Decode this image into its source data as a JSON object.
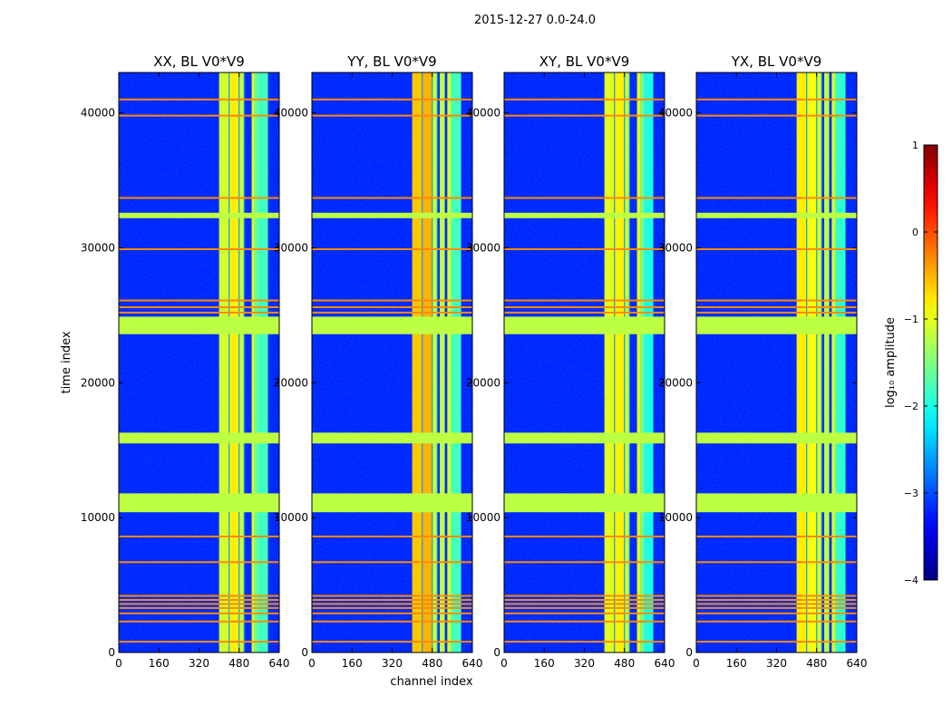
{
  "figure": {
    "suptitle": "2015-12-27 0.0-24.0",
    "xlabel": "channel index",
    "ylabel": "time index"
  },
  "colorbar": {
    "label": "log₁₀ amplitude",
    "ticks": [
      1,
      0,
      -1,
      -2,
      -3,
      -4
    ],
    "tick_labels": [
      "1",
      "0",
      "−1",
      "−2",
      "−3",
      "−4"
    ],
    "vmin": -4,
    "vmax": 1,
    "colormap": "jet"
  },
  "chart_data": [
    {
      "type": "heatmap",
      "title": "XX, BL V0*V9",
      "xlabel": "channel index",
      "ylabel": "time index",
      "xlim": [
        0,
        640
      ],
      "ylim": [
        0,
        43000
      ],
      "xticks": [
        0,
        160,
        320,
        480,
        640
      ],
      "yticks": [
        0,
        10000,
        20000,
        30000,
        40000
      ],
      "z_units": "log10 amplitude",
      "background_value": -3.2,
      "flagged_time_ranges": [
        [
          10400,
          11800
        ],
        [
          15500,
          16300
        ],
        [
          23600,
          24900
        ],
        [
          32200,
          32600
        ]
      ],
      "flagged_value": -1.2,
      "rfi_bands": [
        [
          400,
          440,
          -1.1
        ],
        [
          440,
          480,
          -0.8
        ],
        [
          480,
          500,
          -1.1
        ],
        [
          530,
          545,
          -1.0
        ],
        [
          540,
          555,
          -1.6
        ],
        [
          555,
          595,
          -1.8
        ]
      ],
      "rfi_time_lines": [
        800,
        2300,
        2900,
        3300,
        3600,
        3900,
        4200,
        6700,
        8600,
        25200,
        25600,
        26100,
        29900,
        33700,
        39800,
        41000
      ]
    },
    {
      "type": "heatmap",
      "title": "YY, BL V0*V9",
      "xlabel": "channel index",
      "ylabel": "time index",
      "xlim": [
        0,
        640
      ],
      "ylim": [
        0,
        43000
      ],
      "xticks": [
        0,
        160,
        320,
        480,
        640
      ],
      "yticks": [
        0,
        10000,
        20000,
        30000,
        40000
      ],
      "z_units": "log10 amplitude",
      "background_value": -3.2,
      "flagged_time_ranges": [
        [
          10400,
          11800
        ],
        [
          15500,
          16300
        ],
        [
          23600,
          24900
        ],
        [
          32200,
          32600
        ]
      ],
      "flagged_value": -1.2,
      "rfi_bands": [
        [
          400,
          440,
          -0.6
        ],
        [
          440,
          480,
          -0.5
        ],
        [
          480,
          500,
          -1.1
        ],
        [
          510,
          530,
          -1.2
        ],
        [
          540,
          555,
          -1.1
        ],
        [
          555,
          595,
          -1.8
        ]
      ],
      "rfi_time_lines": [
        800,
        2300,
        2900,
        3300,
        3600,
        3900,
        4200,
        6700,
        8600,
        25200,
        25600,
        26100,
        29900,
        33700,
        39800,
        41000
      ]
    },
    {
      "type": "heatmap",
      "title": "XY, BL V0*V9",
      "xlabel": "channel index",
      "ylabel": "time index",
      "xlim": [
        0,
        640
      ],
      "ylim": [
        0,
        43000
      ],
      "xticks": [
        0,
        160,
        320,
        480,
        640
      ],
      "yticks": [
        0,
        10000,
        20000,
        30000,
        40000
      ],
      "z_units": "log10 amplitude",
      "background_value": -3.2,
      "flagged_time_ranges": [
        [
          10400,
          11800
        ],
        [
          15500,
          16300
        ],
        [
          23600,
          24900
        ],
        [
          32200,
          32600
        ]
      ],
      "flagged_value": -1.2,
      "rfi_bands": [
        [
          400,
          440,
          -1.0
        ],
        [
          440,
          480,
          -0.8
        ],
        [
          480,
          500,
          -1.1
        ],
        [
          530,
          545,
          -1.0
        ],
        [
          545,
          560,
          -1.6
        ],
        [
          560,
          595,
          -2.0
        ]
      ],
      "rfi_time_lines": [
        800,
        2300,
        2900,
        3300,
        3600,
        3900,
        4200,
        6700,
        8600,
        25200,
        25600,
        26100,
        29900,
        33700,
        39800,
        41000
      ]
    },
    {
      "type": "heatmap",
      "title": "YX, BL V0*V9",
      "xlabel": "channel index",
      "ylabel": "time index",
      "xlim": [
        0,
        640
      ],
      "ylim": [
        0,
        43000
      ],
      "xticks": [
        0,
        160,
        320,
        480,
        640
      ],
      "yticks": [
        0,
        10000,
        20000,
        30000,
        40000
      ],
      "z_units": "log10 amplitude",
      "background_value": -3.2,
      "flagged_time_ranges": [
        [
          10400,
          11800
        ],
        [
          15500,
          16300
        ],
        [
          23600,
          24900
        ],
        [
          32200,
          32600
        ]
      ],
      "flagged_value": -1.2,
      "rfi_bands": [
        [
          400,
          440,
          -0.8
        ],
        [
          440,
          480,
          -0.9
        ],
        [
          480,
          500,
          -1.0
        ],
        [
          510,
          530,
          -1.2
        ],
        [
          540,
          555,
          -1.1
        ],
        [
          555,
          595,
          -1.9
        ]
      ],
      "rfi_time_lines": [
        800,
        2300,
        2900,
        3300,
        3600,
        3900,
        4200,
        6700,
        8600,
        25200,
        25600,
        26100,
        29900,
        33700,
        39800,
        41000
      ]
    }
  ]
}
